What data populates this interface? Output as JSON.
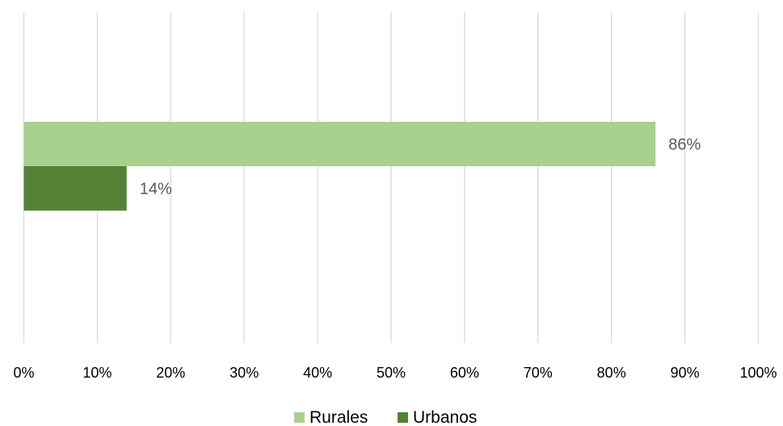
{
  "chart_data": {
    "type": "bar",
    "orientation": "horizontal",
    "title": "",
    "xlabel": "",
    "ylabel": "",
    "xlim": [
      0,
      100
    ],
    "x_ticks": [
      "0%",
      "10%",
      "20%",
      "30%",
      "40%",
      "50%",
      "60%",
      "70%",
      "80%",
      "90%",
      "100%"
    ],
    "grid": true,
    "legend_position": "bottom-center",
    "series": [
      {
        "name": "Rurales",
        "values": [
          86
        ],
        "data_label": "86%",
        "color": "#A9D18E"
      },
      {
        "name": "Urbanos",
        "values": [
          14
        ],
        "data_label": "14%",
        "color": "#548235"
      }
    ]
  }
}
